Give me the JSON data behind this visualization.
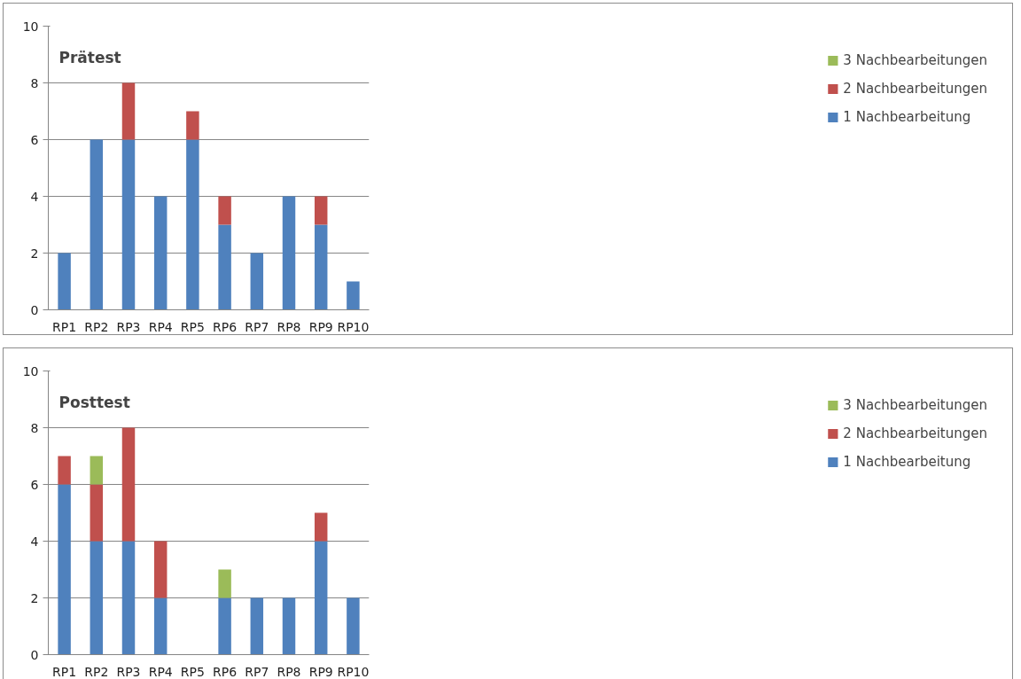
{
  "chart_data": [
    {
      "type": "bar",
      "title": "Prätest",
      "stacked": true,
      "categories": [
        "RP1",
        "RP2",
        "RP3",
        "RP4",
        "RP5",
        "RP6",
        "RP7",
        "RP8",
        "RP9",
        "RP10"
      ],
      "ylim": [
        0,
        10
      ],
      "yticks": [
        0,
        2,
        4,
        6,
        8,
        10
      ],
      "grid": "y",
      "legend": "right",
      "series": [
        {
          "name": "1 Nachbearbeitung",
          "color": "#4f81bd",
          "values": [
            2,
            6,
            6,
            4,
            6,
            3,
            2,
            4,
            3,
            1
          ]
        },
        {
          "name": "2 Nachbearbeitungen",
          "color": "#c0504d",
          "values": [
            0,
            0,
            2,
            0,
            1,
            1,
            0,
            0,
            1,
            0
          ]
        },
        {
          "name": "3 Nachbearbeitungen",
          "color": "#9bbb59",
          "values": [
            0,
            0,
            0,
            0,
            0,
            0,
            0,
            0,
            0,
            0
          ]
        }
      ]
    },
    {
      "type": "bar",
      "title": "Posttest",
      "stacked": true,
      "categories": [
        "RP1",
        "RP2",
        "RP3",
        "RP4",
        "RP5",
        "RP6",
        "RP7",
        "RP8",
        "RP9",
        "RP10"
      ],
      "ylim": [
        0,
        10
      ],
      "yticks": [
        0,
        2,
        4,
        6,
        8,
        10
      ],
      "grid": "y",
      "legend": "right",
      "series": [
        {
          "name": "1 Nachbearbeitung",
          "color": "#4f81bd",
          "values": [
            6,
            4,
            4,
            2,
            0,
            2,
            2,
            2,
            4,
            2
          ]
        },
        {
          "name": "2 Nachbearbeitungen",
          "color": "#c0504d",
          "values": [
            1,
            2,
            4,
            2,
            0,
            0,
            0,
            0,
            1,
            0
          ]
        },
        {
          "name": "3 Nachbearbeitungen",
          "color": "#9bbb59",
          "values": [
            0,
            1,
            0,
            0,
            0,
            1,
            0,
            0,
            0,
            0
          ]
        }
      ]
    }
  ]
}
